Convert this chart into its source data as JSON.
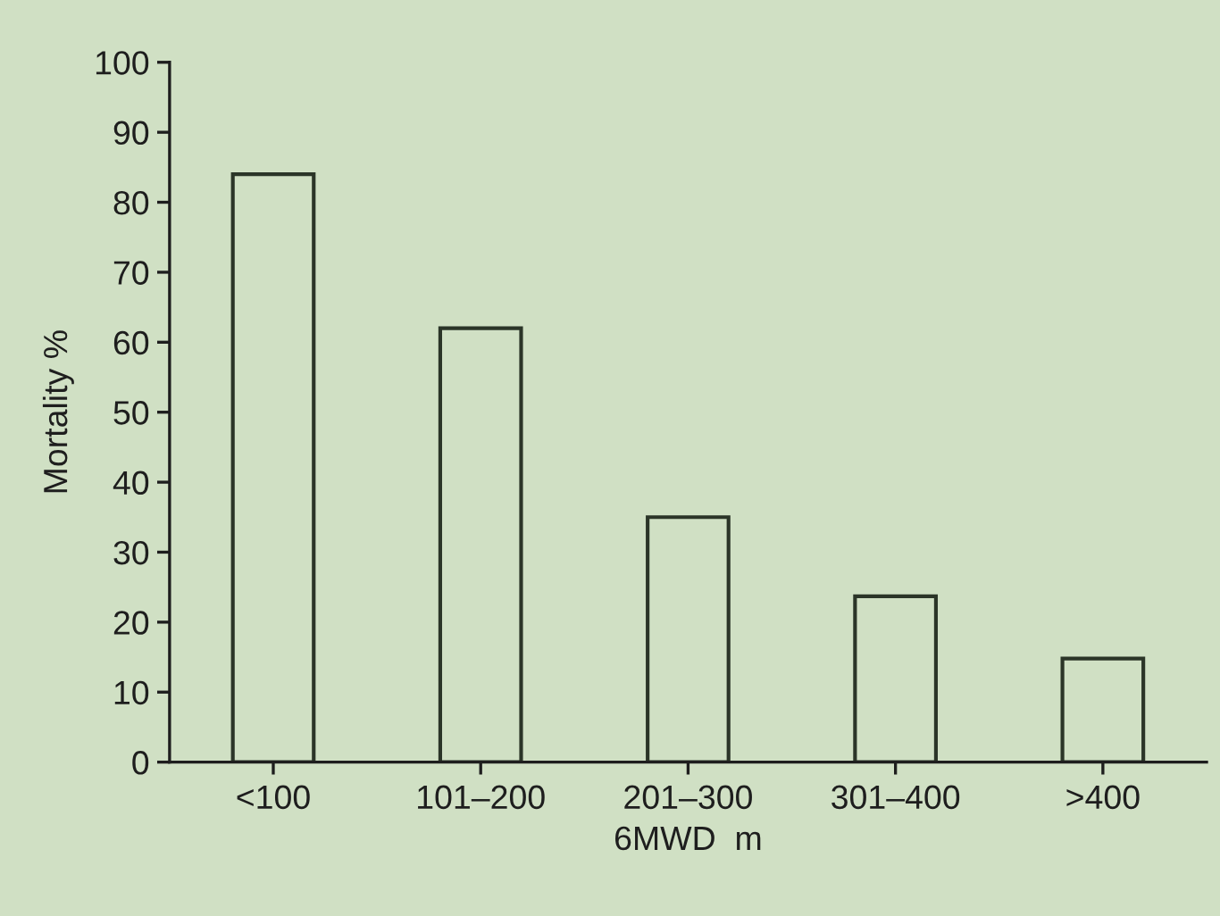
{
  "chart_data": {
    "type": "bar",
    "xlabel": "6MWD  m",
    "ylabel": "Mortality %",
    "categories": [
      "<100",
      "101–200",
      "201–300",
      "301–400",
      ">400"
    ],
    "values": [
      84,
      62,
      35,
      23.7,
      14.8
    ],
    "color": "#2b3528",
    "ylim": [
      0,
      100
    ],
    "yticks": [
      0,
      10,
      20,
      30,
      40,
      50,
      60,
      70,
      80,
      90,
      100
    ],
    "grid": false,
    "legend": false
  }
}
